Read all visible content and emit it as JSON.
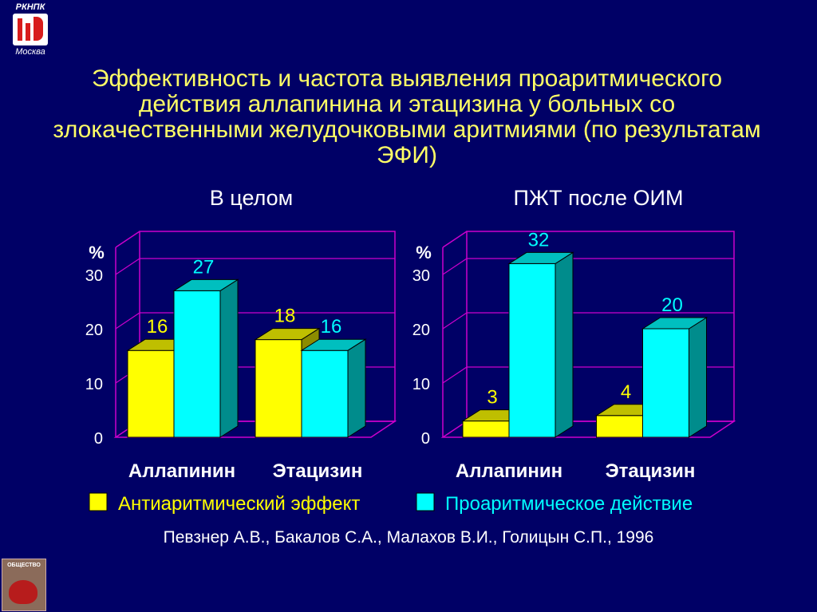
{
  "logo": {
    "top": "РКНПК",
    "bottom": "Москва"
  },
  "title": "Эффективность и частота выявления проаритмического действия аллапинина и этацизина у больных со злокачественными желудочковыми аритмиями (по результатам ЭФИ)",
  "citation": "Певзнер А.В., Бакалов С.А., Малахов В.И., Голицын С.П., 1996",
  "badge_text": "ОБЩЕСТВО",
  "colors": {
    "background": "#000066",
    "yellow": "#ffff00",
    "cyan": "#00ffff",
    "grid": "#cc00cc",
    "title": "#ffff66",
    "label_yellow": "#ffff00",
    "label_cyan": "#00ffff"
  },
  "legend": [
    {
      "label": "Антиаритмический эффект",
      "color": "#ffff00"
    },
    {
      "label": "Проаритмическое действие",
      "color": "#00ffff"
    }
  ],
  "chart_data": [
    {
      "type": "bar",
      "title": "В целом",
      "ylabel": "%",
      "ylim": [
        0,
        30
      ],
      "yticks": [
        0,
        10,
        20,
        30
      ],
      "categories": [
        "Аллапинин",
        "Этацизин"
      ],
      "series": [
        {
          "name": "Антиаритмический эффект",
          "values": [
            16,
            18
          ]
        },
        {
          "name": "Проаритмическое действие",
          "values": [
            27,
            16
          ]
        }
      ]
    },
    {
      "type": "bar",
      "title": "ПЖТ после ОИМ",
      "ylabel": "%",
      "ylim": [
        0,
        30
      ],
      "yticks": [
        0,
        10,
        20,
        30
      ],
      "categories": [
        "Аллапинин",
        "Этацизин"
      ],
      "series": [
        {
          "name": "Антиаритмический эффект",
          "values": [
            3,
            4
          ]
        },
        {
          "name": "Проаритмическое действие",
          "values": [
            32,
            20
          ]
        }
      ]
    }
  ]
}
